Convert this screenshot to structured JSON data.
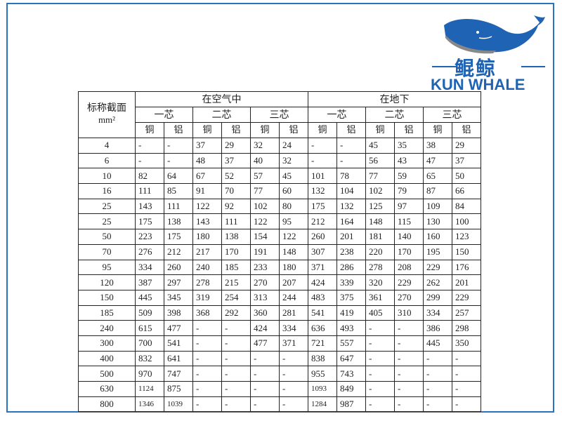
{
  "logo": {
    "brand_cn": "鲲鲸",
    "brand_en": "KUN WHALE",
    "color": "#1f63b4",
    "icon": "whale-icon"
  },
  "table": {
    "corner_label": "标称截面",
    "corner_unit": "mm²",
    "groups": [
      "在空气中",
      "在地下"
    ],
    "cores": [
      "一芯",
      "二芯",
      "三芯",
      "一芯",
      "二芯",
      "三芯"
    ],
    "materials": [
      "铜",
      "铝",
      "铜",
      "铝",
      "铜",
      "铝",
      "铜",
      "铝",
      "铜",
      "铝",
      "铜",
      "铝"
    ],
    "rows": [
      [
        "4",
        "-",
        "-",
        "37",
        "29",
        "32",
        "24",
        "-",
        "-",
        "45",
        "35",
        "38",
        "29"
      ],
      [
        "6",
        "-",
        "-",
        "48",
        "37",
        "40",
        "32",
        "-",
        "-",
        "56",
        "43",
        "47",
        "37"
      ],
      [
        "10",
        "82",
        "64",
        "67",
        "52",
        "57",
        "45",
        "101",
        "78",
        "77",
        "59",
        "65",
        "50"
      ],
      [
        "16",
        "111",
        "85",
        "91",
        "70",
        "77",
        "60",
        "132",
        "104",
        "102",
        "79",
        "87",
        "66"
      ],
      [
        "25",
        "143",
        "111",
        "122",
        "92",
        "102",
        "80",
        "175",
        "132",
        "125",
        "97",
        "109",
        "84"
      ],
      [
        "25",
        "175",
        "138",
        "143",
        "111",
        "122",
        "95",
        "212",
        "164",
        "148",
        "115",
        "130",
        "100"
      ],
      [
        "50",
        "223",
        "175",
        "180",
        "138",
        "154",
        "122",
        "260",
        "201",
        "181",
        "140",
        "160",
        "123"
      ],
      [
        "70",
        "276",
        "212",
        "217",
        "170",
        "191",
        "148",
        "307",
        "238",
        "220",
        "170",
        "195",
        "150"
      ],
      [
        "95",
        "334",
        "260",
        "240",
        "185",
        "233",
        "180",
        "371",
        "286",
        "278",
        "208",
        "229",
        "176"
      ],
      [
        "120",
        "387",
        "297",
        "278",
        "215",
        "270",
        "207",
        "424",
        "339",
        "320",
        "229",
        "262",
        "201"
      ],
      [
        "150",
        "445",
        "345",
        "319",
        "254",
        "313",
        "244",
        "483",
        "375",
        "361",
        "270",
        "299",
        "229"
      ],
      [
        "185",
        "509",
        "398",
        "368",
        "292",
        "360",
        "281",
        "541",
        "419",
        "405",
        "310",
        "334",
        "257"
      ],
      [
        "240",
        "615",
        "477",
        "-",
        "-",
        "424",
        "334",
        "636",
        "493",
        "-",
        "-",
        "386",
        "298"
      ],
      [
        "300",
        "700",
        "541",
        "-",
        "-",
        "477",
        "371",
        "721",
        "557",
        "-",
        "-",
        "445",
        "350"
      ],
      [
        "400",
        "832",
        "641",
        "-",
        "-",
        "-",
        "-",
        "838",
        "647",
        "-",
        "-",
        "-",
        "-"
      ],
      [
        "500",
        "970",
        "747",
        "-",
        "-",
        "-",
        "-",
        "955",
        "743",
        "-",
        "-",
        "-",
        "-"
      ],
      [
        "630",
        "1124",
        "875",
        "-",
        "-",
        "-",
        "-",
        "1093",
        "849",
        "-",
        "-",
        "-",
        "-"
      ],
      [
        "800",
        "1346",
        "1039",
        "-",
        "-",
        "-",
        "-",
        "1284",
        "987",
        "-",
        "-",
        "-",
        "-"
      ]
    ]
  }
}
